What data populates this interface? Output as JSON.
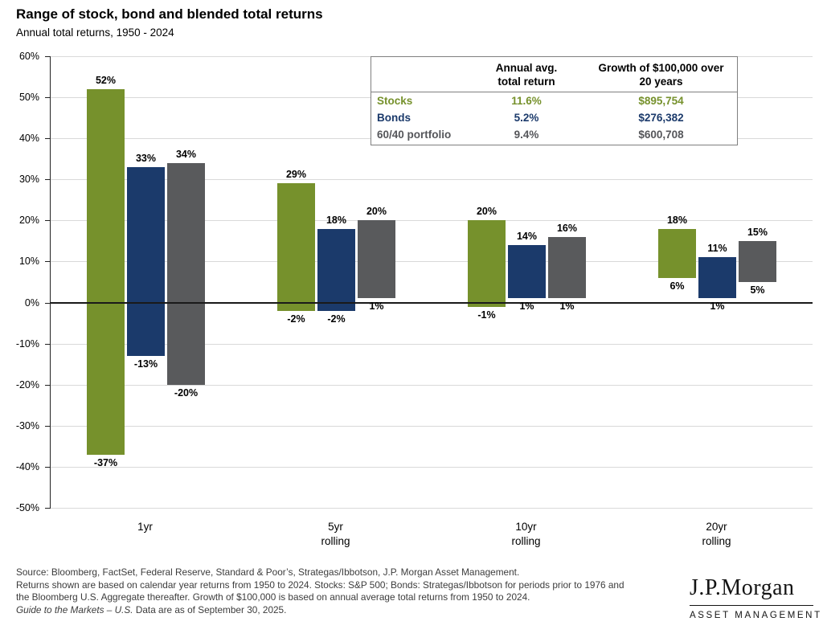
{
  "header": {
    "title": "Range of stock, bond and blended total returns",
    "subtitle": "Annual total returns, 1950 - 2024"
  },
  "chart_data": {
    "type": "bar",
    "subtype": "floating-range-columns",
    "title": "Range of stock, bond and blended total returns",
    "categories": [
      "1yr",
      "5yr rolling",
      "10yr rolling",
      "20yr rolling"
    ],
    "series": [
      {
        "name": "Stocks",
        "color": "#76912c",
        "max": [
          52,
          29,
          20,
          18
        ],
        "min": [
          -37,
          -2,
          -1,
          6
        ]
      },
      {
        "name": "Bonds",
        "color": "#1b3a6b",
        "max": [
          33,
          18,
          14,
          11
        ],
        "min": [
          -13,
          -2,
          1,
          1
        ]
      },
      {
        "name": "60/40 portfolio",
        "color": "#595a5c",
        "max": [
          34,
          20,
          16,
          15
        ],
        "min": [
          -20,
          1,
          1,
          5
        ]
      }
    ],
    "ylim": [
      -50,
      60
    ],
    "ytick_step": 10,
    "y_ticks": [
      "60%",
      "50%",
      "40%",
      "30%",
      "20%",
      "10%",
      "0%",
      "-10%",
      "-20%",
      "-30%",
      "-40%",
      "-50%"
    ],
    "grid": true,
    "legend_position": "table-top-right"
  },
  "table": {
    "header_avg": "Annual avg.\ntotal return",
    "header_growth": "Growth of $100,000 over\n20 years",
    "rows": [
      {
        "label": "Stocks",
        "avg": "11.6%",
        "growth": "$895,754"
      },
      {
        "label": "Bonds",
        "avg": "5.2%",
        "growth": "$276,382"
      },
      {
        "label": "60/40 portfolio",
        "avg": "9.4%",
        "growth": "$600,708"
      }
    ]
  },
  "footer": {
    "line1": "Source: Bloomberg, FactSet, Federal Reserve, Standard & Poor’s, Strategas/Ibbotson, J.P. Morgan Asset Management.",
    "line2": "Returns shown are based on calendar year returns from 1950 to 2024. Stocks: S&P 500; Bonds: Strategas/Ibbotson for periods prior to 1976 and",
    "line3": "the Bloomberg U.S. Aggregate thereafter. Growth of $100,000 is based on annual average total returns from 1950 to 2024.",
    "line4_italic": "Guide to the Markets – U.S.",
    "line4_rest": " Data are as of September 30, 2025."
  },
  "logo": {
    "name": "J.P.Morgan",
    "sub": "ASSET MANAGEMENT"
  }
}
